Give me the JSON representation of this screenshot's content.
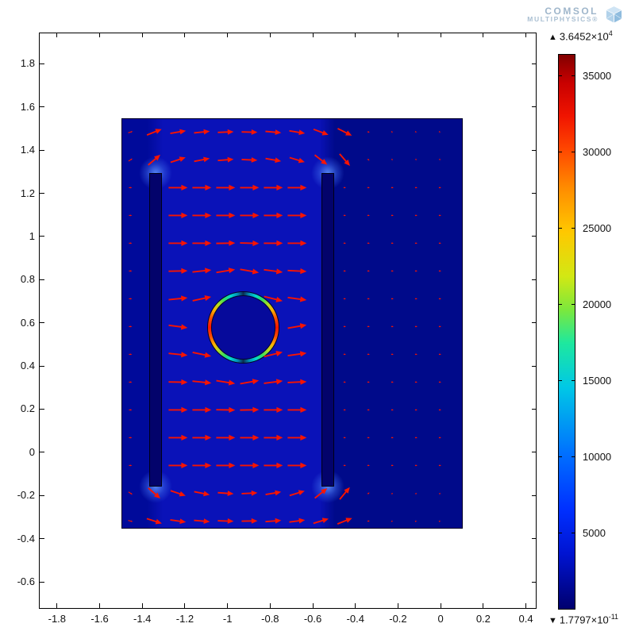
{
  "logo": {
    "line1": "COMSOL",
    "line2": "MULTIPHYSICS®"
  },
  "colorbar": {
    "max_prefix": "▲",
    "max_mantissa": "3.6452×10",
    "max_exponent": "4",
    "min_prefix": "▼",
    "min_mantissa": "1.7797×10",
    "min_exponent": "-11",
    "tick_labels": [
      "35000",
      "30000",
      "25000",
      "20000",
      "15000",
      "10000",
      "5000"
    ],
    "tick_values": [
      35000,
      30000,
      25000,
      20000,
      15000,
      10000,
      5000
    ]
  },
  "axes": {
    "x_tick_labels": [
      "-1.8",
      "-1.6",
      "-1.4",
      "-1.2",
      "-1",
      "-0.8",
      "-0.6",
      "-0.4",
      "-0.2",
      "0",
      "0.2",
      "0.4"
    ],
    "x_tick_values": [
      -1.8,
      -1.6,
      -1.4,
      -1.2,
      -1,
      -0.8,
      -0.6,
      -0.4,
      -0.2,
      0,
      0.2,
      0.4
    ],
    "y_tick_labels": [
      "1.8",
      "1.6",
      "1.4",
      "1.2",
      "1",
      "0.8",
      "0.6",
      "0.4",
      "0.2",
      "0",
      "-0.2",
      "-0.4",
      "-0.6"
    ],
    "y_tick_values": [
      1.8,
      1.6,
      1.4,
      1.2,
      1,
      0.8,
      0.6,
      0.4,
      0.2,
      0,
      -0.2,
      -0.4,
      -0.6
    ]
  },
  "chart_data": {
    "type": "heatmap",
    "overlay": "quiver",
    "description": "COMSOL Multiphysics surface plot of magnetic flux density magnitude with red arrow field; two vertical coil cross-sections inside a rectangular domain and a circular workpiece whose rim shows a rainbow field ring (max at sides, min at poles).",
    "x_range": [
      -1.885,
      0.45
    ],
    "y_range": [
      -0.725,
      1.945
    ],
    "x_ticks": [
      -1.8,
      -1.6,
      -1.4,
      -1.2,
      -1,
      -0.8,
      -0.6,
      -0.4,
      -0.2,
      0,
      0.2,
      0.4
    ],
    "y_ticks": [
      1.8,
      1.6,
      1.4,
      1.2,
      1,
      0.8,
      0.6,
      0.4,
      0.2,
      0,
      -0.2,
      -0.4,
      -0.6
    ],
    "grid": false,
    "legend_position": "right",
    "colorbar": {
      "colormap": "rainbow-jet",
      "min": 1.7797e-11,
      "max": 36452,
      "max_label": "3.6452×10^4",
      "min_label": "1.7797×10^-11",
      "tick_values": [
        5000,
        10000,
        15000,
        20000,
        25000,
        30000,
        35000
      ]
    },
    "geometry": {
      "outer_rect": {
        "x0": -1.5,
        "x1": 0.1,
        "y0": -0.35,
        "y1": 1.55
      },
      "coil_left": {
        "x0": -1.373,
        "x1": -1.314,
        "y0": -0.15,
        "y1": 1.3
      },
      "coil_right": {
        "x0": -0.567,
        "x1": -0.508,
        "y0": -0.15,
        "y1": 1.3
      },
      "circle": {
        "cx": -0.935,
        "cy": 0.585,
        "r": 0.166
      }
    },
    "colors": {
      "surface_left": "#000a9a",
      "surface_window": "#0a12b8",
      "surface_right": "#000a8a",
      "coil_fill": "#03036b",
      "arrow": "#f81400"
    }
  }
}
